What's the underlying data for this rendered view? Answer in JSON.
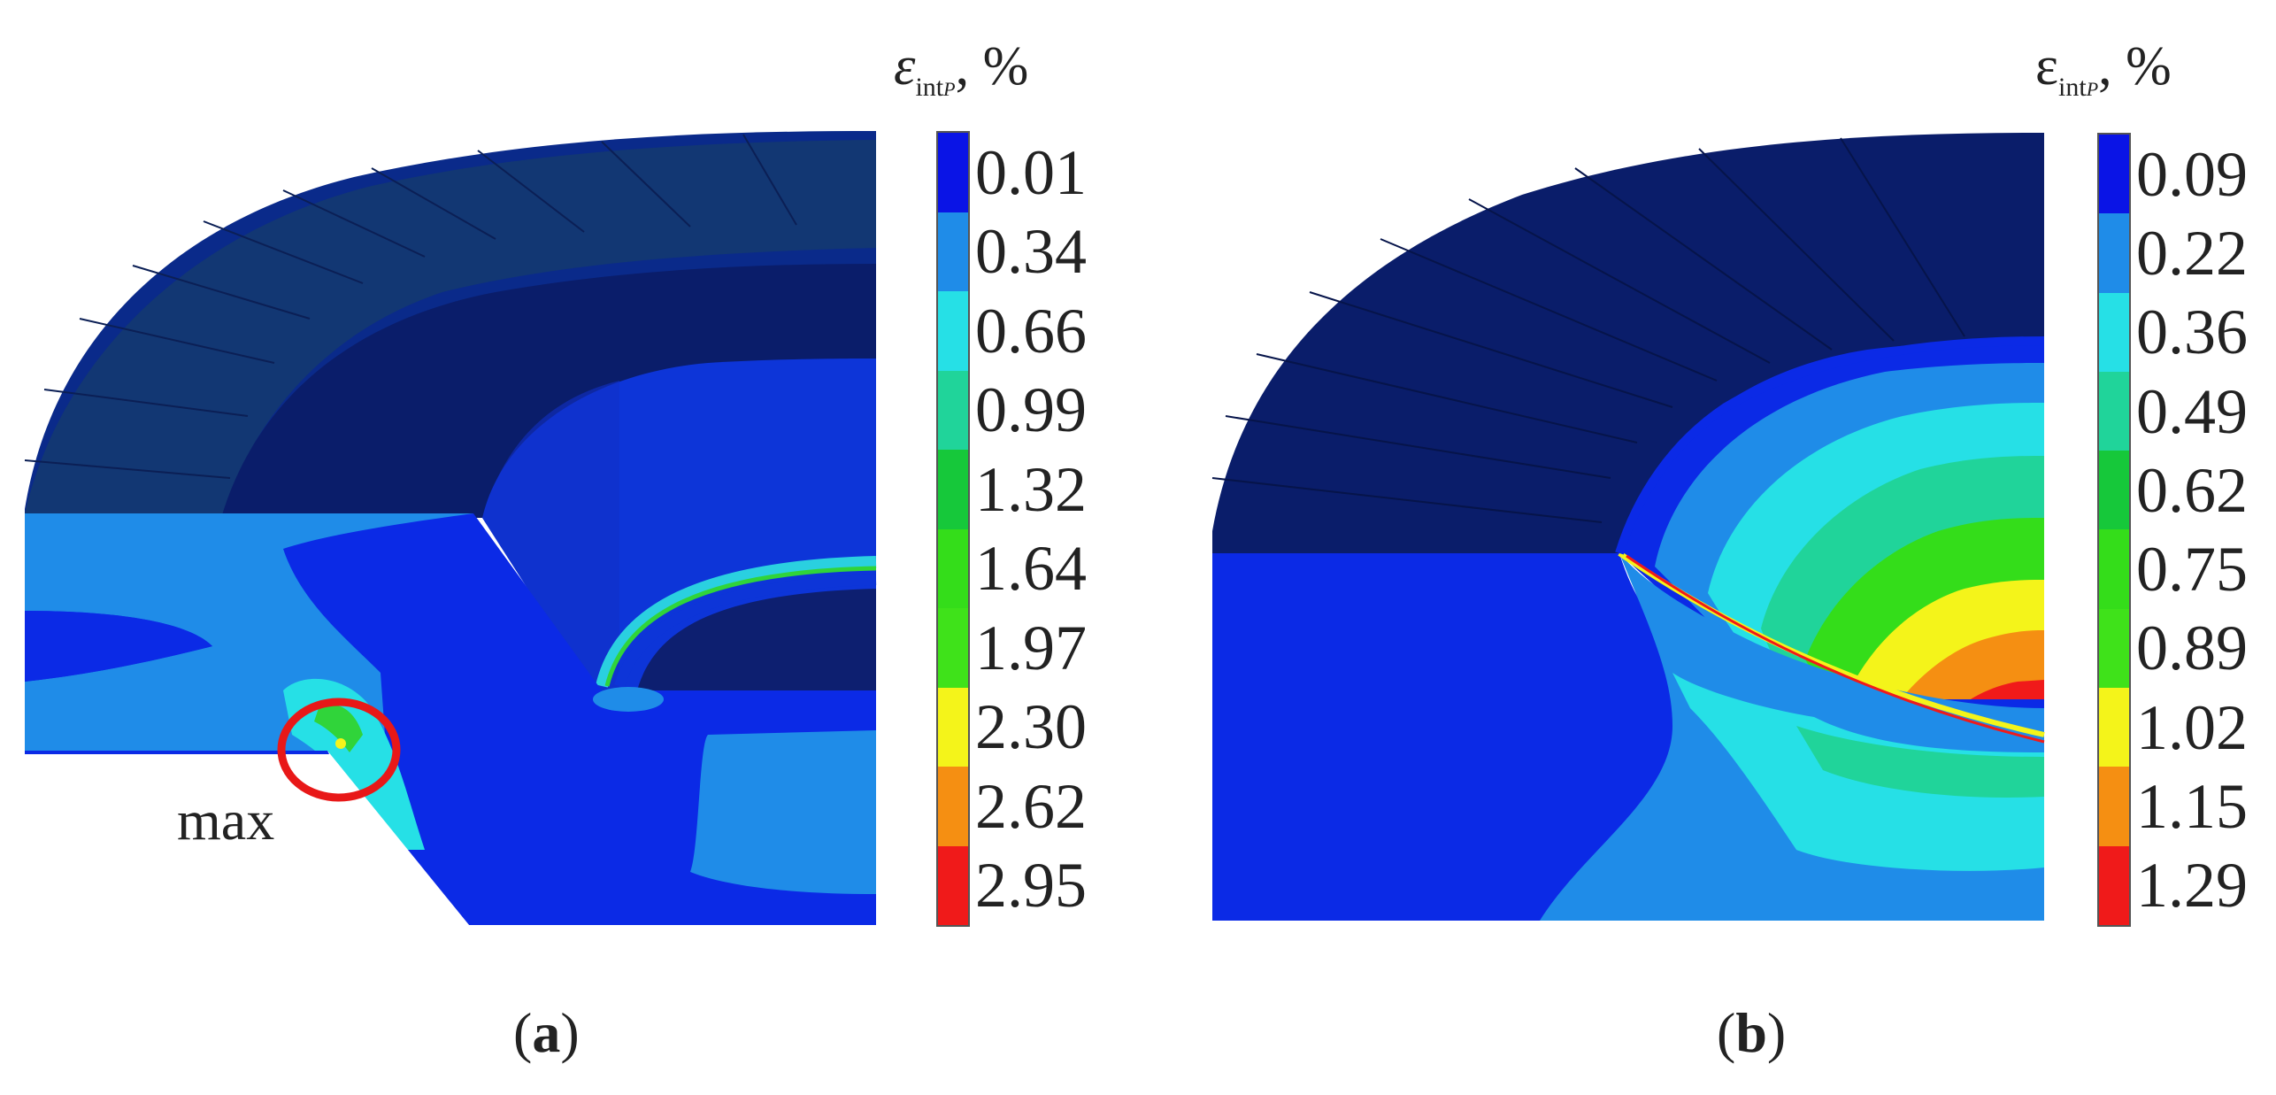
{
  "panels": [
    {
      "id": "a",
      "caption_prefix": "(",
      "caption_letter": "a",
      "caption_suffix": ")",
      "legend_symbol": "ε",
      "legend_subscript": "int",
      "legend_sub_sub": "P",
      "legend_unit": ", %",
      "ticks": [
        "0.01",
        "0.34",
        "0.66",
        "0.99",
        "1.32",
        "1.64",
        "1.97",
        "2.30",
        "2.62",
        "2.95"
      ],
      "annotation": "max"
    },
    {
      "id": "b",
      "caption_prefix": "(",
      "caption_letter": "b",
      "caption_suffix": ")",
      "legend_symbol": "ε",
      "legend_subscript": "int",
      "legend_sub_sub": "P",
      "legend_unit": ", %",
      "ticks": [
        "0.09",
        "0.22",
        "0.36",
        "0.49",
        "0.62",
        "0.75",
        "0.89",
        "1.02",
        "1.15",
        "1.29"
      ]
    }
  ],
  "colormap": [
    "#0a14e6",
    "#1f8ce8",
    "#26e0e6",
    "#20d49a",
    "#16c83a",
    "#34dd1a",
    "#3fe21a",
    "#f4f41a",
    "#f58f12",
    "#f01a1a"
  ]
}
